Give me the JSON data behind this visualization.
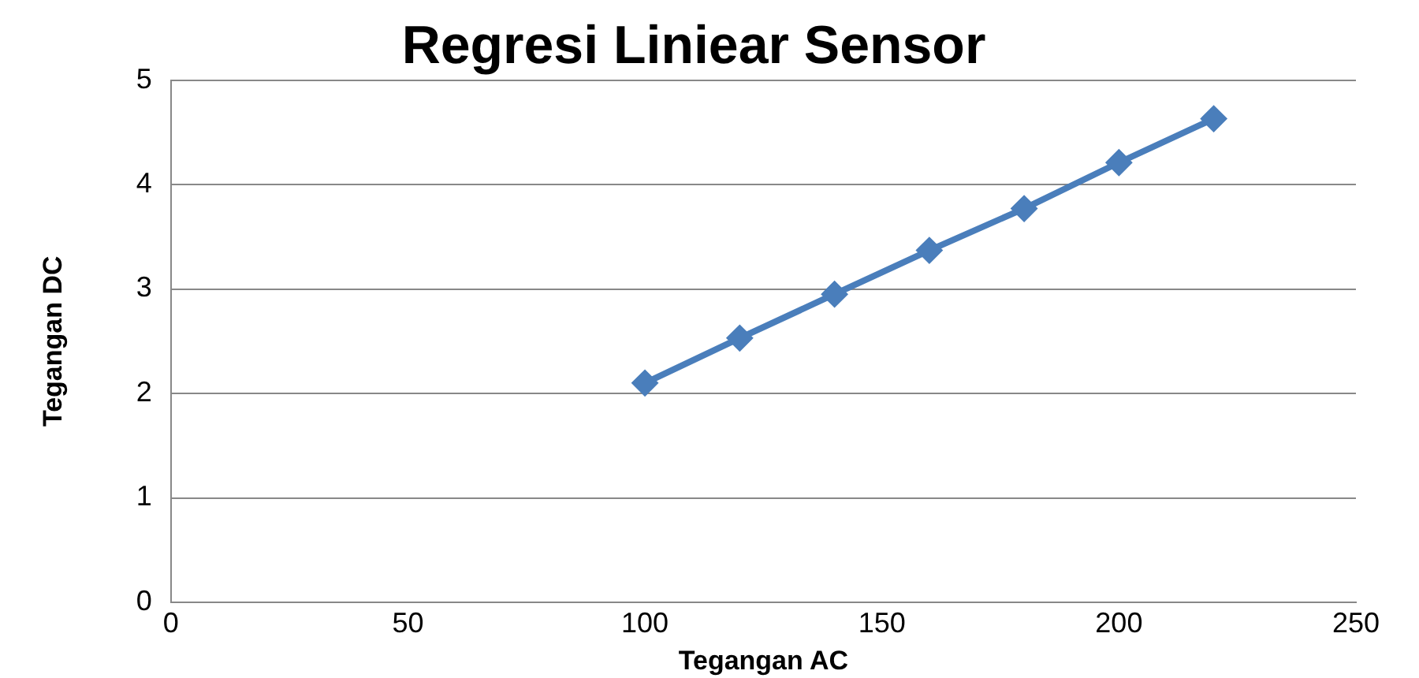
{
  "chart_data": {
    "type": "line",
    "title": "Regresi Liniear Sensor",
    "xlabel": "Tegangan AC",
    "ylabel": "Tegangan DC",
    "x": [
      100,
      120,
      140,
      160,
      180,
      200,
      220
    ],
    "series": [
      {
        "color": "#4a7ebb",
        "values": [
          2.1,
          2.53,
          2.95,
          3.37,
          3.77,
          4.21,
          4.63
        ]
      }
    ],
    "xlim": [
      0,
      250
    ],
    "xticks": [
      0,
      50,
      100,
      150,
      200,
      250
    ],
    "ylim": [
      0,
      5
    ],
    "yticks": [
      0,
      1,
      2,
      3,
      4,
      5
    ],
    "grid": "y",
    "legend": false,
    "marker": "diamond",
    "line_style": "solid"
  }
}
